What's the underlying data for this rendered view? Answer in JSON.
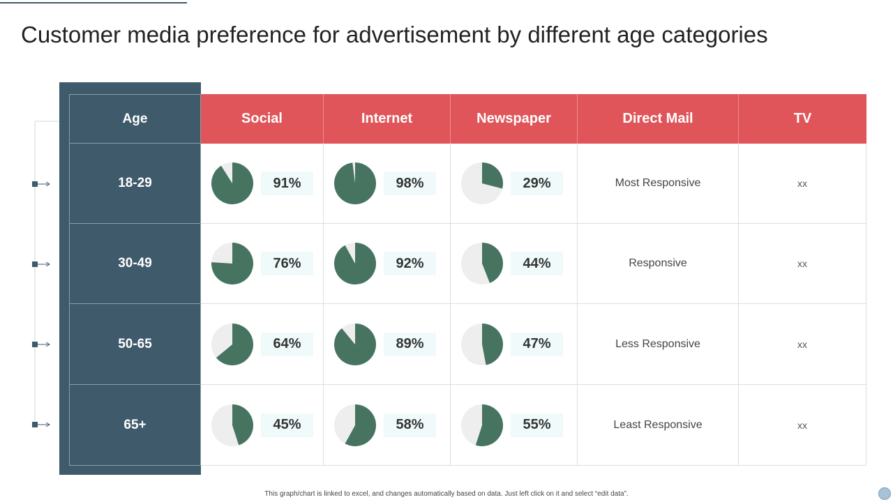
{
  "title": "Customer media preference for advertisement by different age categories",
  "footnote": "This graph/chart is linked to excel, and changes automatically based on data. Just left click on it and select “edit data”.",
  "colors": {
    "header": "#e05559",
    "age_panel": "#3f5a6b",
    "pie_fill": "#467461",
    "pie_empty": "#eeeeee",
    "pct_box": "#f0fafa"
  },
  "chart_data": {
    "type": "table",
    "columns": [
      "Age",
      "Social",
      "Internet",
      "Newspaper",
      "Direct Mail",
      "TV"
    ],
    "rows": [
      {
        "age": "18-29",
        "social": 91,
        "internet": 98,
        "newspaper": 29,
        "social_label": "91%",
        "internet_label": "98%",
        "newspaper_label": "29%",
        "direct_mail": "Most Responsive",
        "tv": "xx"
      },
      {
        "age": "30-49",
        "social": 76,
        "internet": 92,
        "newspaper": 44,
        "social_label": "76%",
        "internet_label": "92%",
        "newspaper_label": "44%",
        "direct_mail": "Responsive",
        "tv": "xx"
      },
      {
        "age": "50-65",
        "social": 64,
        "internet": 89,
        "newspaper": 47,
        "social_label": "64%",
        "internet_label": "89%",
        "newspaper_label": "47%",
        "direct_mail": "Less Responsive",
        "tv": "xx"
      },
      {
        "age": "65+",
        "social": 45,
        "internet": 58,
        "newspaper": 55,
        "social_label": "45%",
        "internet_label": "58%",
        "newspaper_label": "55%",
        "direct_mail": "Least Responsive",
        "tv": "xx"
      }
    ]
  }
}
